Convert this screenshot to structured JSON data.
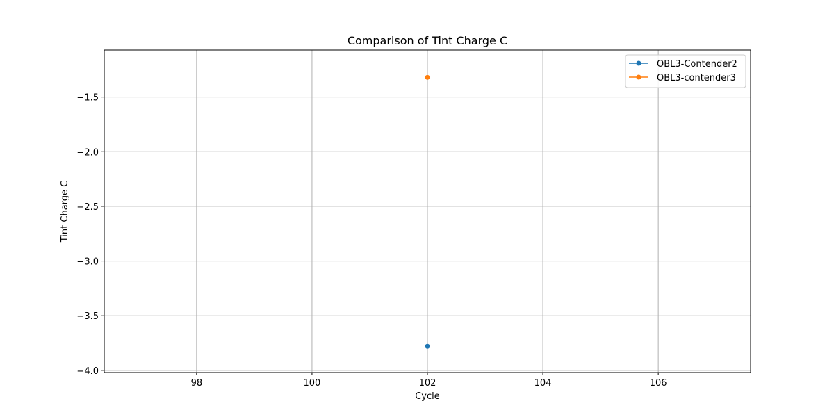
{
  "chart_data": {
    "type": "line",
    "title": "Comparison of Tint Charge C",
    "xlabel": "Cycle",
    "ylabel": "Tint Charge C",
    "xlim": [
      96.4,
      107.6
    ],
    "ylim": [
      -4.02,
      -1.07
    ],
    "xticks": [
      98,
      100,
      102,
      104,
      106
    ],
    "yticks": [
      -4.0,
      -3.5,
      -3.0,
      -2.5,
      -2.0,
      -1.5
    ],
    "ytick_labels": [
      "−4.0",
      "−3.5",
      "−3.0",
      "−2.5",
      "−2.0",
      "−1.5"
    ],
    "grid": true,
    "legend_position": "top-right",
    "series": [
      {
        "name": "OBL3-Contender2",
        "color": "#1f77b4",
        "x": [
          102
        ],
        "y": [
          -3.78
        ]
      },
      {
        "name": "OBL3-contender3",
        "color": "#ff7f0e",
        "x": [
          102
        ],
        "y": [
          -1.32
        ]
      }
    ]
  }
}
